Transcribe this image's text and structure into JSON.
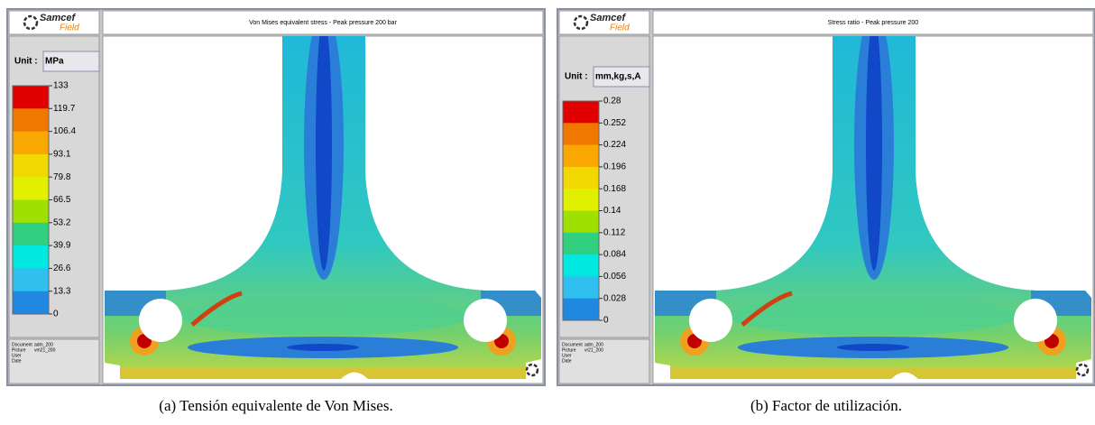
{
  "panels": [
    {
      "logo": {
        "brand": "Samcef",
        "product": "Field"
      },
      "title": "Von Mises equivalent stress - Peak pressure 200 bar",
      "unit_label": "Unit :",
      "unit": "MPa",
      "legend": [
        "133",
        "119.7",
        "106.4",
        "93.1",
        "79.8",
        "66.5",
        "53.2",
        "39.9",
        "26.6",
        "13.3",
        "0"
      ],
      "info": [
        {
          "label": "Document",
          "value": "adm_200"
        },
        {
          "label": "Picture",
          "value": "vm21_200"
        },
        {
          "label": "User"
        },
        {
          "label": "Date"
        }
      ],
      "caption": "(a) Tensión equivalente de Von Mises."
    },
    {
      "logo": {
        "brand": "Samcef",
        "product": "Field"
      },
      "title": "Stress ratio - Peak pressure 200",
      "unit_label": "Unit :",
      "unit": "mm,kg,s,A",
      "legend": [
        "0.28",
        "0.252",
        "0.224",
        "0.196",
        "0.168",
        "0.14",
        "0.112",
        "0.084",
        "0.056",
        "0.028",
        "0"
      ],
      "info": [
        {
          "label": "Document",
          "value": "adm_200"
        },
        {
          "label": "Picture",
          "value": "vr21_200"
        },
        {
          "label": "User"
        },
        {
          "label": "Date"
        }
      ],
      "caption": "(b) Factor de utilización."
    }
  ]
}
